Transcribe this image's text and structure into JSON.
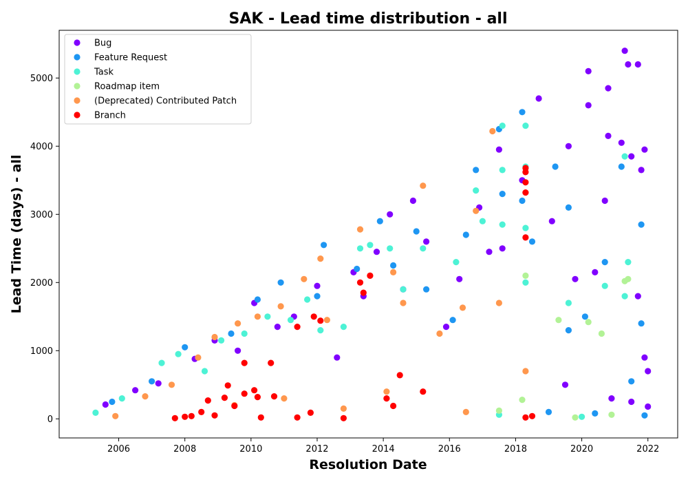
{
  "chart_data": {
    "type": "scatter",
    "title": "SAK - Lead time distribution - all",
    "xlabel": "Resolution Date",
    "ylabel": "Lead Time (days) - all",
    "xlim": [
      2004.2,
      2022.9
    ],
    "ylim": [
      -280,
      5700
    ],
    "x_ticks": [
      2006,
      2008,
      2010,
      2012,
      2014,
      2016,
      2018,
      2020,
      2022
    ],
    "y_ticks": [
      0,
      1000,
      2000,
      3000,
      4000,
      5000
    ],
    "grid": false,
    "legend_position": "top-left",
    "series": [
      {
        "name": "Bug",
        "color": "#8000ff",
        "points": [
          [
            2005.6,
            210
          ],
          [
            2006.5,
            420
          ],
          [
            2007.2,
            520
          ],
          [
            2008.3,
            880
          ],
          [
            2008.9,
            1150
          ],
          [
            2009.6,
            1000
          ],
          [
            2010.1,
            1700
          ],
          [
            2010.8,
            1350
          ],
          [
            2011.3,
            1500
          ],
          [
            2012.0,
            1950
          ],
          [
            2012.6,
            900
          ],
          [
            2013.1,
            2150
          ],
          [
            2013.4,
            1800
          ],
          [
            2013.8,
            2450
          ],
          [
            2014.2,
            3000
          ],
          [
            2014.6,
            1900
          ],
          [
            2014.9,
            3200
          ],
          [
            2015.3,
            2600
          ],
          [
            2015.9,
            1350
          ],
          [
            2016.3,
            2050
          ],
          [
            2016.9,
            3100
          ],
          [
            2017.2,
            2450
          ],
          [
            2017.5,
            3950
          ],
          [
            2017.6,
            2500
          ],
          [
            2018.2,
            3500
          ],
          [
            2018.7,
            4700
          ],
          [
            2019.1,
            2900
          ],
          [
            2019.6,
            4000
          ],
          [
            2019.8,
            2050
          ],
          [
            2020.2,
            5100
          ],
          [
            2020.2,
            4600
          ],
          [
            2020.4,
            2150
          ],
          [
            2020.7,
            3200
          ],
          [
            2020.8,
            4850
          ],
          [
            2020.8,
            4150
          ],
          [
            2021.3,
            5400
          ],
          [
            2021.4,
            5200
          ],
          [
            2021.2,
            4050
          ],
          [
            2021.5,
            3850
          ],
          [
            2021.7,
            5200
          ],
          [
            2021.8,
            3650
          ],
          [
            2021.9,
            3950
          ],
          [
            2021.7,
            1800
          ],
          [
            2021.9,
            900
          ],
          [
            2022.0,
            700
          ],
          [
            2022.0,
            180
          ],
          [
            2021.5,
            250
          ],
          [
            2020.9,
            300
          ],
          [
            2019.5,
            500
          ]
        ]
      },
      {
        "name": "Feature Request",
        "color": "#1e96f2",
        "points": [
          [
            2005.8,
            250
          ],
          [
            2007.0,
            550
          ],
          [
            2008.0,
            1050
          ],
          [
            2009.4,
            1250
          ],
          [
            2010.2,
            1750
          ],
          [
            2010.9,
            2000
          ],
          [
            2012.2,
            2550
          ],
          [
            2012.0,
            1800
          ],
          [
            2013.2,
            2200
          ],
          [
            2013.9,
            2900
          ],
          [
            2014.3,
            2250
          ],
          [
            2015.0,
            2750
          ],
          [
            2015.3,
            1900
          ],
          [
            2016.1,
            1450
          ],
          [
            2016.5,
            2700
          ],
          [
            2016.8,
            3650
          ],
          [
            2017.5,
            4250
          ],
          [
            2017.6,
            3300
          ],
          [
            2018.2,
            4500
          ],
          [
            2018.2,
            3200
          ],
          [
            2018.5,
            2600
          ],
          [
            2019.2,
            3700
          ],
          [
            2019.6,
            3100
          ],
          [
            2019.6,
            1300
          ],
          [
            2020.1,
            1500
          ],
          [
            2020.7,
            2300
          ],
          [
            2021.2,
            3700
          ],
          [
            2021.8,
            2850
          ],
          [
            2021.8,
            1400
          ],
          [
            2021.5,
            550
          ],
          [
            2021.9,
            50
          ],
          [
            2020.4,
            80
          ],
          [
            2019.0,
            100
          ]
        ]
      },
      {
        "name": "Task",
        "color": "#4df2d5",
        "points": [
          [
            2005.3,
            90
          ],
          [
            2006.1,
            300
          ],
          [
            2007.3,
            820
          ],
          [
            2007.8,
            950
          ],
          [
            2008.6,
            700
          ],
          [
            2009.1,
            1150
          ],
          [
            2009.8,
            1250
          ],
          [
            2010.5,
            1500
          ],
          [
            2011.2,
            1450
          ],
          [
            2011.7,
            1750
          ],
          [
            2012.1,
            1300
          ],
          [
            2012.8,
            1350
          ],
          [
            2013.3,
            2500
          ],
          [
            2013.6,
            2550
          ],
          [
            2014.2,
            2500
          ],
          [
            2014.6,
            1900
          ],
          [
            2015.2,
            2500
          ],
          [
            2016.2,
            2300
          ],
          [
            2016.8,
            3350
          ],
          [
            2017.0,
            2900
          ],
          [
            2017.6,
            4300
          ],
          [
            2017.6,
            3650
          ],
          [
            2017.6,
            2850
          ],
          [
            2018.3,
            4300
          ],
          [
            2018.3,
            3700
          ],
          [
            2018.3,
            2800
          ],
          [
            2018.3,
            2000
          ],
          [
            2019.6,
            1700
          ],
          [
            2021.4,
            2300
          ],
          [
            2021.3,
            1800
          ],
          [
            2021.3,
            3850
          ],
          [
            2020.7,
            1950
          ],
          [
            2020.0,
            30
          ],
          [
            2017.5,
            60
          ]
        ]
      },
      {
        "name": "Roadmap item",
        "color": "#b2f296",
        "points": [
          [
            2018.2,
            280
          ],
          [
            2018.3,
            2100
          ],
          [
            2019.3,
            1450
          ],
          [
            2020.2,
            1420
          ],
          [
            2020.6,
            1250
          ],
          [
            2021.3,
            2020
          ],
          [
            2021.4,
            2050
          ],
          [
            2020.9,
            60
          ],
          [
            2019.8,
            20
          ],
          [
            2017.5,
            120
          ]
        ]
      },
      {
        "name": "(Deprecated) Contributed Patch",
        "color": "#ff974d",
        "points": [
          [
            2005.9,
            40
          ],
          [
            2006.8,
            330
          ],
          [
            2007.6,
            500
          ],
          [
            2008.4,
            900
          ],
          [
            2008.9,
            1200
          ],
          [
            2009.6,
            1400
          ],
          [
            2010.2,
            1500
          ],
          [
            2010.9,
            1650
          ],
          [
            2011.6,
            2050
          ],
          [
            2012.1,
            2350
          ],
          [
            2012.3,
            1450
          ],
          [
            2013.3,
            2780
          ],
          [
            2013.6,
            2100
          ],
          [
            2014.3,
            2150
          ],
          [
            2014.6,
            1700
          ],
          [
            2015.2,
            3420
          ],
          [
            2015.7,
            1250
          ],
          [
            2016.8,
            3050
          ],
          [
            2017.3,
            4220
          ],
          [
            2017.5,
            1700
          ],
          [
            2018.3,
            700
          ],
          [
            2016.4,
            1630
          ],
          [
            2014.1,
            400
          ],
          [
            2012.8,
            150
          ],
          [
            2011.0,
            300
          ],
          [
            2009.5,
            200
          ],
          [
            2016.5,
            100
          ]
        ]
      },
      {
        "name": "Branch",
        "color": "#ff0000",
        "points": [
          [
            2007.7,
            10
          ],
          [
            2008.0,
            30
          ],
          [
            2008.2,
            40
          ],
          [
            2008.5,
            100
          ],
          [
            2008.7,
            270
          ],
          [
            2008.9,
            50
          ],
          [
            2009.2,
            310
          ],
          [
            2009.3,
            490
          ],
          [
            2009.5,
            190
          ],
          [
            2009.8,
            820
          ],
          [
            2009.8,
            370
          ],
          [
            2010.1,
            420
          ],
          [
            2010.2,
            320
          ],
          [
            2010.3,
            20
          ],
          [
            2010.6,
            820
          ],
          [
            2010.7,
            330
          ],
          [
            2011.4,
            20
          ],
          [
            2011.4,
            1350
          ],
          [
            2011.8,
            90
          ],
          [
            2011.9,
            1500
          ],
          [
            2012.1,
            1440
          ],
          [
            2012.8,
            10
          ],
          [
            2013.3,
            2000
          ],
          [
            2013.4,
            1850
          ],
          [
            2013.6,
            2100
          ],
          [
            2014.1,
            300
          ],
          [
            2014.3,
            190
          ],
          [
            2014.5,
            640
          ],
          [
            2015.2,
            400
          ],
          [
            2018.3,
            3680
          ],
          [
            2018.3,
            3620
          ],
          [
            2018.3,
            3470
          ],
          [
            2018.3,
            3320
          ],
          [
            2018.3,
            2660
          ],
          [
            2018.3,
            20
          ],
          [
            2018.5,
            40
          ]
        ]
      }
    ]
  }
}
